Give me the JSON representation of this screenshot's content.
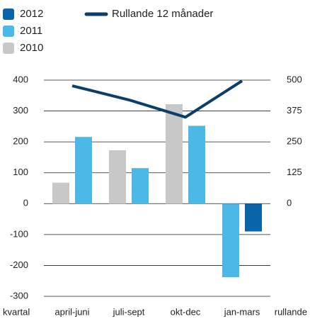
{
  "chart_data": {
    "type": "bar",
    "categories": [
      "april-juni",
      "juli-sept",
      "okt-dec",
      "jan-mars"
    ],
    "x_label": "kvartal",
    "y2_label": "rullande",
    "series": [
      {
        "name": "2012",
        "color": "#0a64a8",
        "values": [
          null,
          null,
          null,
          -90
        ]
      },
      {
        "name": "2011",
        "color": "#4cb8e8",
        "values": [
          216,
          115,
          252,
          -238
        ]
      },
      {
        "name": "2010",
        "color": "#c8c8c8",
        "values": [
          68,
          173,
          322,
          null
        ]
      },
      {
        "name": "Rullande 12 månader",
        "type": "line",
        "axis": "y2",
        "color": "#0b3f6b",
        "values": [
          477,
          420,
          350,
          497
        ]
      }
    ],
    "ylim": [
      -300,
      400
    ],
    "yticks": [
      -300,
      -200,
      -100,
      0,
      100,
      200,
      300,
      400
    ],
    "y2lim": [
      -375,
      500
    ],
    "y2ticks": [
      0,
      125,
      250,
      375,
      500
    ],
    "grid": true
  }
}
